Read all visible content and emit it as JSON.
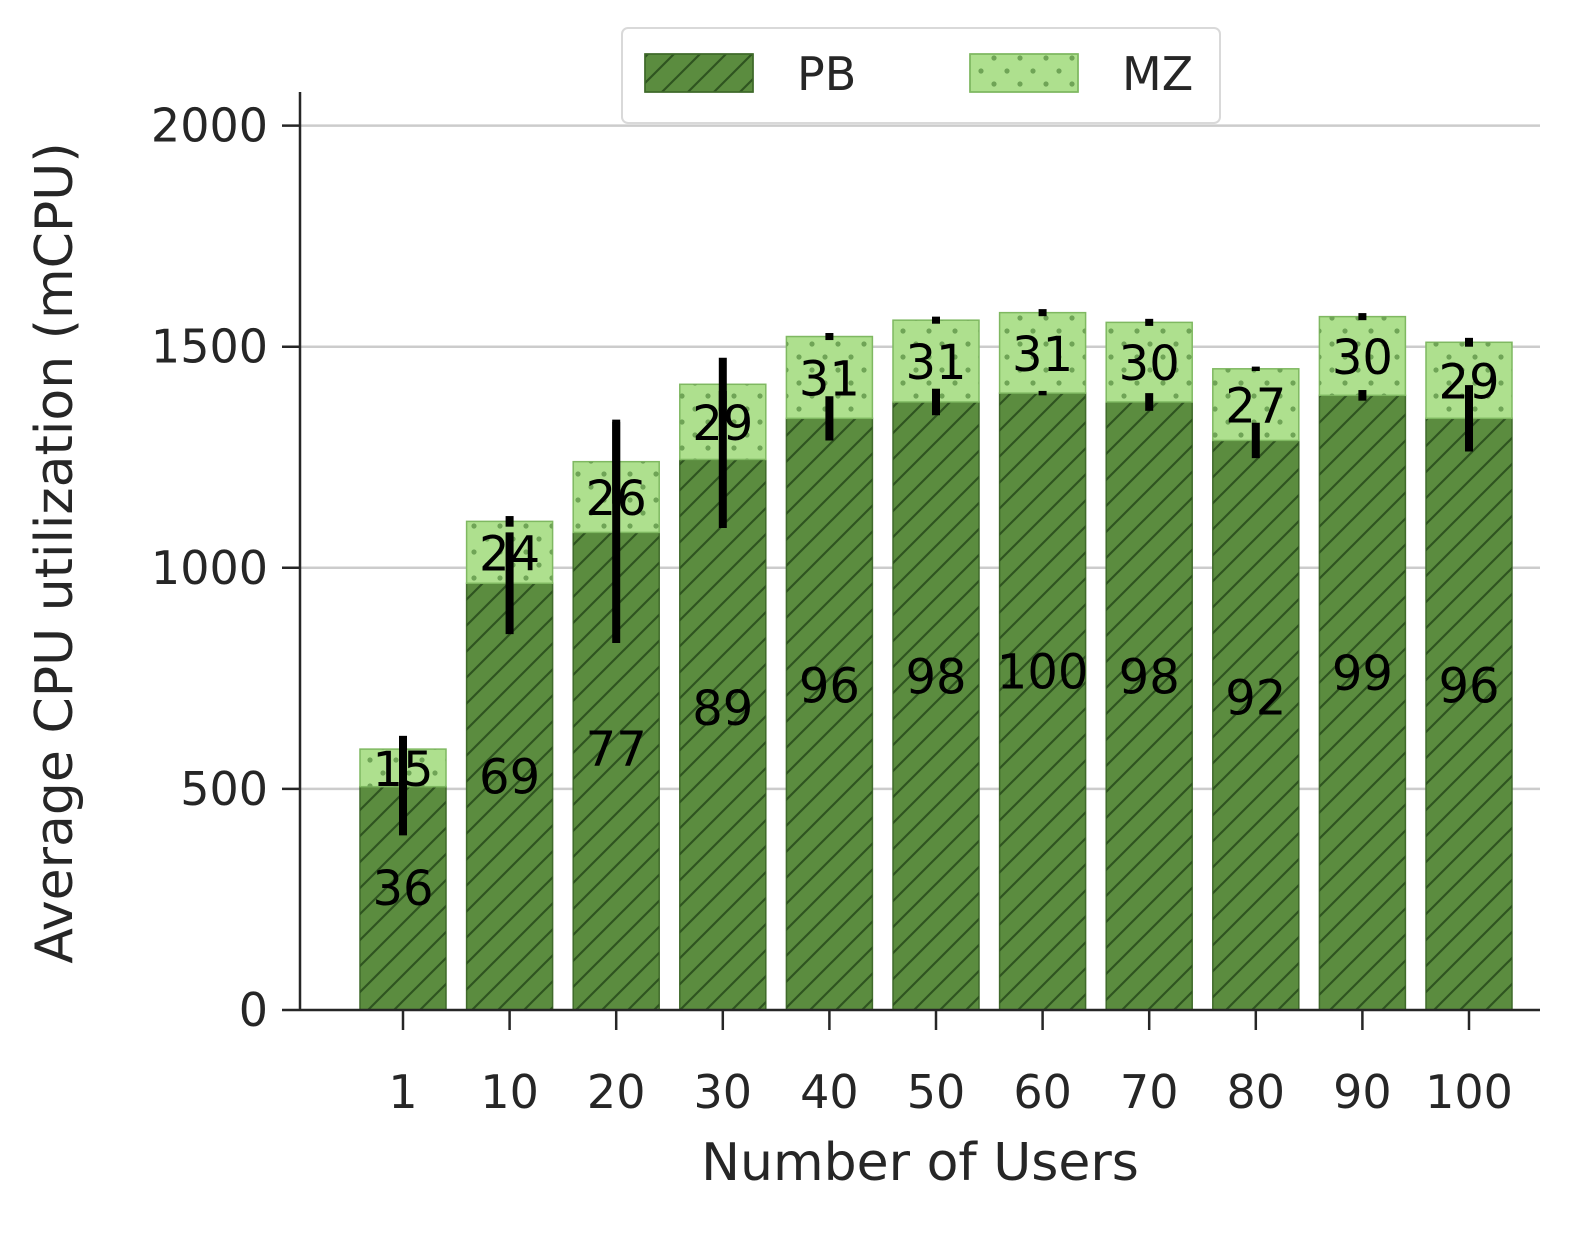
{
  "chart_data": {
    "type": "bar",
    "stacked": true,
    "categories": [
      "1",
      "10",
      "20",
      "30",
      "40",
      "50",
      "60",
      "70",
      "80",
      "90",
      "100"
    ],
    "series": [
      {
        "name": "PB",
        "values": [
          505,
          965,
          1080,
          1245,
          1338,
          1375,
          1395,
          1375,
          1288,
          1390,
          1338
        ],
        "error": [
          110,
          115,
          250,
          155,
          50,
          30,
          5,
          20,
          40,
          12,
          75
        ],
        "labels": [
          "36",
          "69",
          "77",
          "89",
          "96",
          "98",
          "100",
          "98",
          "92",
          "99",
          "96"
        ],
        "color": "#5b8c3f",
        "edge": "#3f6a2a",
        "pattern": "hatch"
      },
      {
        "name": "MZ",
        "values": [
          85,
          140,
          160,
          170,
          185,
          185,
          182,
          180,
          162,
          178,
          172
        ],
        "error": [
          30,
          12,
          95,
          60,
          8,
          8,
          8,
          8,
          5,
          8,
          10
        ],
        "labels": [
          "15",
          "24",
          "26",
          "29",
          "31",
          "31",
          "31",
          "30",
          "27",
          "30",
          "29"
        ],
        "color": "#aee08e",
        "edge": "#7fb861",
        "pattern": "dots"
      }
    ],
    "title": "",
    "xlabel": "Number of Users",
    "ylabel": "Average CPU utilization (mCPU)",
    "ylim": [
      0,
      2100
    ],
    "yticks": [
      "0",
      "500",
      "1000",
      "1500",
      "2000"
    ],
    "grid": "y",
    "legend": "top-center"
  }
}
